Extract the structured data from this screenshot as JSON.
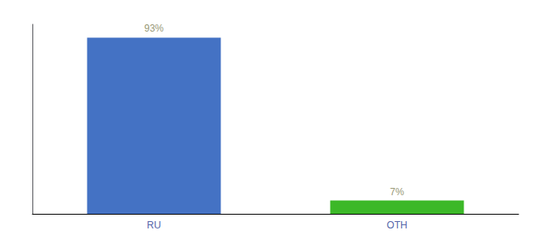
{
  "chart_data": {
    "type": "bar",
    "categories": [
      "RU",
      "OTH"
    ],
    "values": [
      93,
      7
    ],
    "value_labels": [
      "93%",
      "7%"
    ],
    "colors": [
      "#4472c4",
      "#3cb828"
    ],
    "ylim": [
      0,
      100
    ],
    "grid": false,
    "data_labels": true,
    "tick_labels": "x"
  }
}
